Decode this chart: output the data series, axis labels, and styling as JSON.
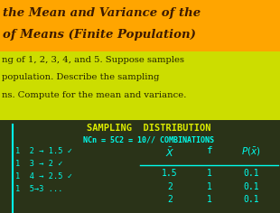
{
  "title_line1": "the Mean and Variance of the",
  "title_line2": "of Means (Finite Population)",
  "title_bg": "#FFA500",
  "title_text_color": "#3D1A00",
  "yellow_bg": "#CCDD00",
  "yellow_text_color": "#222200",
  "yellow_lines": [
    "ng of 1, 2, 3, 4, and 5. Suppose samples",
    "population. Describe the sampling",
    "ns. Compute for the mean and variance."
  ],
  "dark_bg": "#2A3318",
  "cyan_color": "#00FFEE",
  "yellow_text_dark": "#DDEE00",
  "table_title": "SAMPLING  DISTRIBUTION",
  "table_line2": "NCn = 5C2 = 10// COMBINATIONS",
  "left_col": [
    "1  2 → 1.5 ✓",
    "1  3 → 2 ✓",
    "1  4 → 2.5 ✓",
    "1  5→3 ..."
  ],
  "row1_vals": [
    "1.5",
    "1",
    "0.1"
  ],
  "row2_vals": [
    "2",
    "1",
    "0.1"
  ]
}
